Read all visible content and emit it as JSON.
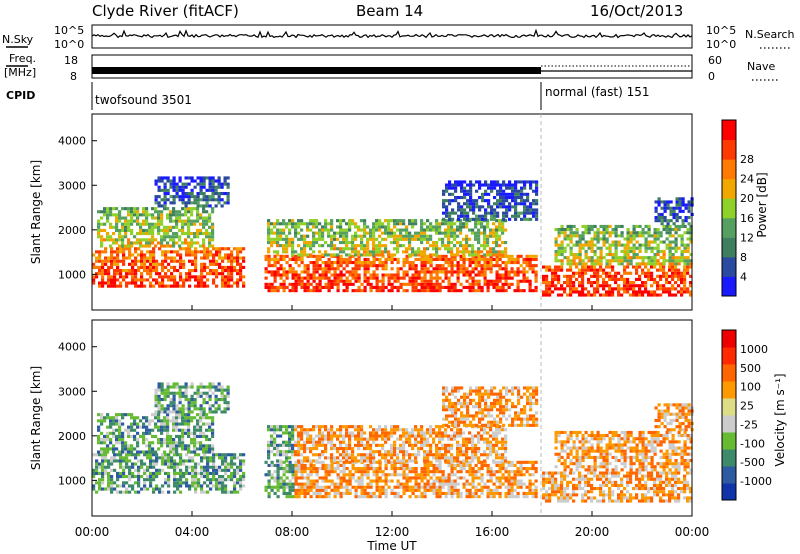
{
  "header": {
    "station": "Clyde River (fitACF)",
    "beam": "Beam 14",
    "date": "16/Oct/2013"
  },
  "top_panels": {
    "nsky_label": "N.Sky",
    "nsky_ticks": [
      "10^5",
      "10^0"
    ],
    "nsearch_label": "N.Search",
    "nsearch_ticks": [
      "10^5",
      "10^0"
    ],
    "freq_label_1": "Freq.",
    "freq_label_2": "[MHz]",
    "freq_ticks": [
      "18",
      "8"
    ],
    "nave_label": "Nave",
    "nave_ticks": [
      "60",
      "0"
    ],
    "cpid_label": "CPID",
    "cpid_modes": [
      "twofsound 3501",
      "normal (fast) 151"
    ]
  },
  "colors": {
    "power_scale": [
      "#1a1aff",
      "#2a4aa0",
      "#3f7f5f",
      "#55a060",
      "#8ed12a",
      "#f0a800",
      "#ff7a00",
      "#ff3a00",
      "#ff0000"
    ],
    "velocity_scale": [
      "#1133aa",
      "#2d5aa0",
      "#3d8a6a",
      "#66bb33",
      "#cccccc",
      "#dddd88",
      "#ff9900",
      "#ff6600",
      "#ff2a00",
      "#ee0000"
    ]
  },
  "chart_data": [
    {
      "type": "heatmap",
      "panel": "power",
      "ylabel": "Slant Range [km]",
      "yticks": [
        "1000",
        "2000",
        "3000",
        "4000"
      ],
      "ylim": [
        200,
        4600
      ],
      "colorbar_label": "Power [dB]",
      "colorbar_ticks": [
        "4",
        "8",
        "12",
        "16",
        "20",
        "24",
        "28"
      ],
      "clim": [
        0,
        32
      ]
    },
    {
      "type": "heatmap",
      "panel": "velocity",
      "ylabel": "Slant Range [km]",
      "yticks": [
        "1000",
        "2000",
        "3000",
        "4000"
      ],
      "ylim": [
        200,
        4600
      ],
      "colorbar_label": "Velocity [m s⁻¹]",
      "colorbar_ticks": [
        "1000",
        "500",
        "100",
        "25",
        "-25",
        "-100",
        "-500",
        "-1000"
      ],
      "clim": [
        -1000,
        1000
      ]
    }
  ],
  "x_axis": {
    "xlabel": "Time UT",
    "ticks": [
      "00:00",
      "04:00",
      "08:00",
      "12:00",
      "16:00",
      "20:00",
      "00:00"
    ],
    "xlim_hours": [
      0,
      24
    ]
  }
}
